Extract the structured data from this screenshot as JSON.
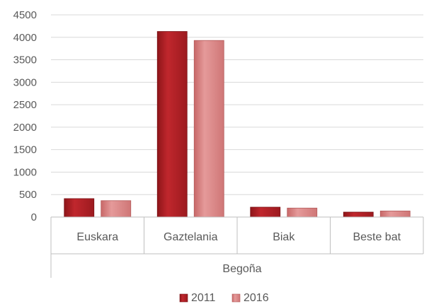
{
  "chart_data": {
    "type": "bar",
    "categories": [
      "Euskara",
      "Gaztelania",
      "Biak",
      "Beste bat"
    ],
    "group_label": "Begoña",
    "series": [
      {
        "name": "2011",
        "values": [
          410,
          4130,
          220,
          110
        ],
        "color": "#c0272d"
      },
      {
        "name": "2016",
        "values": [
          365,
          3930,
          200,
          135
        ],
        "color": "#e08c8c"
      }
    ],
    "y_ticks": [
      "0",
      "500",
      "1000",
      "1500",
      "2000",
      "2500",
      "3000",
      "3500",
      "4000",
      "4500"
    ],
    "ylim": [
      0,
      4500
    ],
    "grid": true,
    "legend_position": "bottom"
  }
}
